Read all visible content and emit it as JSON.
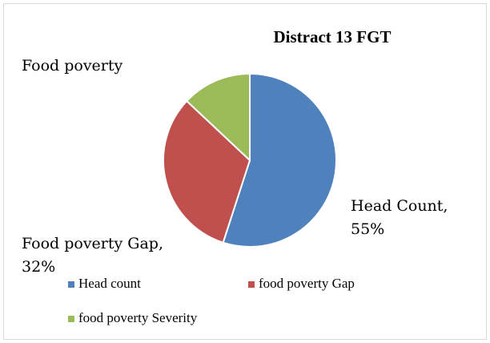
{
  "chart_data": {
    "type": "pie",
    "title": "Distract 13 FGT",
    "categories": [
      "Head count",
      "food poverty Gap",
      "food poverty Severity"
    ],
    "values": [
      55,
      32,
      13
    ],
    "value_labels": [
      "Head Count, 55%",
      "Food poverty Gap, 32%",
      null
    ],
    "colors": [
      "#4f81bd",
      "#c0504d",
      "#9bbb59"
    ],
    "annotations": [
      "Food poverty"
    ],
    "legend": "bottom"
  }
}
